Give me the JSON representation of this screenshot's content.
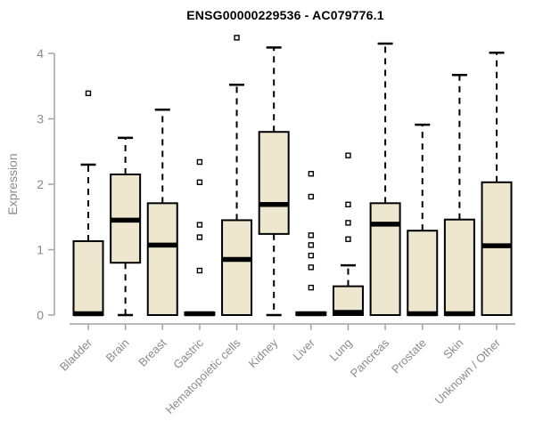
{
  "title": "ENSG00000229536 - AC079776.1",
  "colors": {
    "background": "#ffffff",
    "box_fill": "#ede7cf",
    "box_stroke": "#000000",
    "median_color": "#000000",
    "whisker_color": "#000000",
    "axis_line": "#a3a3a3",
    "tick_label": "#8b8b8b",
    "title_color": "#000000",
    "outlier_stroke": "#000000",
    "outlier_fill": "#ffffff"
  },
  "chart_data": {
    "type": "boxplot",
    "title": "ENSG00000229536 - AC079776.1",
    "xlabel": "",
    "ylabel": "Expression",
    "ylim": [
      0,
      4.3
    ],
    "yticks": [
      0,
      1,
      2,
      3,
      4
    ],
    "grid": false,
    "legend": "none",
    "categories": [
      "Bladder",
      "Brain",
      "Breast",
      "Gastric",
      "Hematopoietic cells",
      "Kidney",
      "Liver",
      "Lung",
      "Pancreas",
      "Prostate",
      "Skin",
      "Unknown / Other"
    ],
    "boxes": [
      {
        "label": "Bladder",
        "q1": 0,
        "median": 0.02,
        "q3": 1.13,
        "whisker_low": 0,
        "whisker_high": 2.3,
        "outliers": [
          3.39
        ]
      },
      {
        "label": "Brain",
        "q1": 0.8,
        "median": 1.45,
        "q3": 2.15,
        "whisker_low": 0,
        "whisker_high": 2.71,
        "outliers": []
      },
      {
        "label": "Breast",
        "q1": 0,
        "median": 1.07,
        "q3": 1.71,
        "whisker_low": 0,
        "whisker_high": 3.14,
        "outliers": []
      },
      {
        "label": "Gastric",
        "q1": 0,
        "median": 0.02,
        "q3": 0.04,
        "whisker_low": 0,
        "whisker_high": 0.04,
        "outliers": [
          2.34,
          2.03,
          1.38,
          1.19,
          0.68
        ]
      },
      {
        "label": "Hematopoietic cells",
        "q1": 0,
        "median": 0.85,
        "q3": 1.45,
        "whisker_low": 0,
        "whisker_high": 3.52,
        "outliers": [
          4.24
        ]
      },
      {
        "label": "Kidney",
        "q1": 1.24,
        "median": 1.69,
        "q3": 2.8,
        "whisker_low": 0,
        "whisker_high": 4.09,
        "outliers": []
      },
      {
        "label": "Liver",
        "q1": 0,
        "median": 0.02,
        "q3": 0.04,
        "whisker_low": 0,
        "whisker_high": 0.04,
        "outliers": [
          2.16,
          1.81,
          1.22,
          1.07,
          0.91,
          0.73,
          0.42
        ]
      },
      {
        "label": "Lung",
        "q1": 0,
        "median": 0.04,
        "q3": 0.44,
        "whisker_low": 0,
        "whisker_high": 0.76,
        "outliers": [
          2.44,
          1.69,
          1.41,
          1.16
        ]
      },
      {
        "label": "Pancreas",
        "q1": 0,
        "median": 1.39,
        "q3": 1.71,
        "whisker_low": 0,
        "whisker_high": 4.15,
        "outliers": []
      },
      {
        "label": "Prostate",
        "q1": 0,
        "median": 0.02,
        "q3": 1.29,
        "whisker_low": 0,
        "whisker_high": 2.91,
        "outliers": []
      },
      {
        "label": "Skin",
        "q1": 0,
        "median": 0.02,
        "q3": 1.46,
        "whisker_low": 0,
        "whisker_high": 3.67,
        "outliers": []
      },
      {
        "label": "Unknown / Other",
        "q1": 0,
        "median": 1.06,
        "q3": 2.03,
        "whisker_low": 0,
        "whisker_high": 4.01,
        "outliers": []
      }
    ]
  }
}
